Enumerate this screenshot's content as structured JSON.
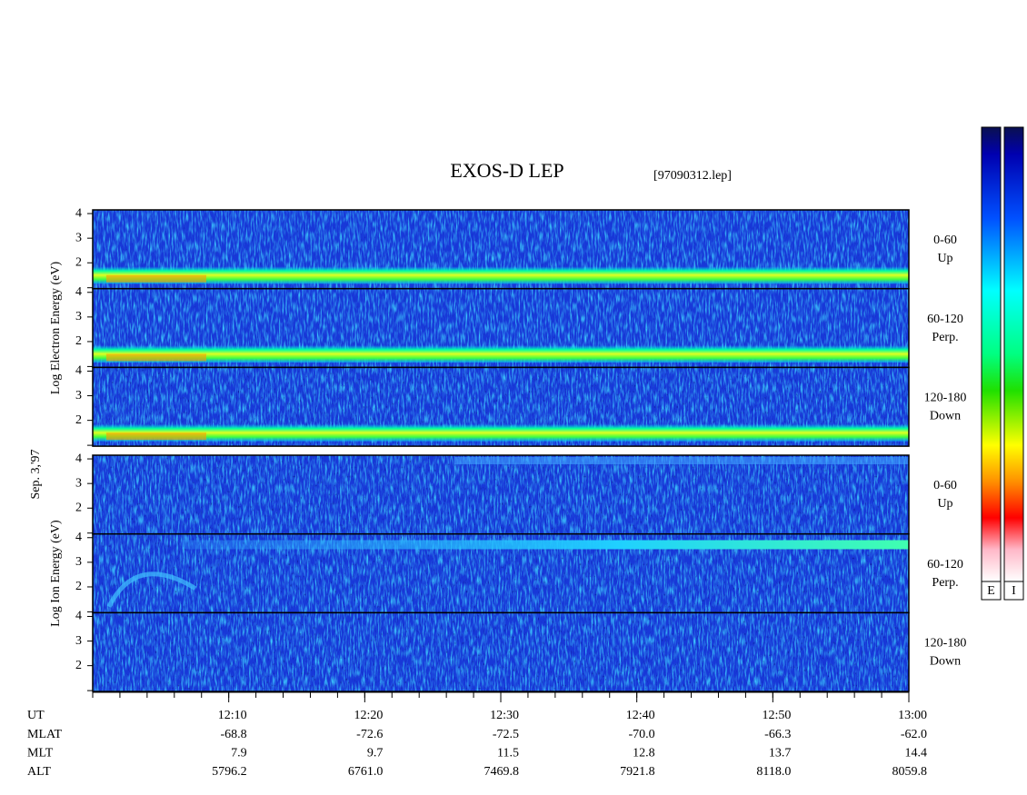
{
  "chart_data": {
    "type": "spectrogram",
    "title": "EXOS-D LEP",
    "subtitle": "[97090312.lep]",
    "date_label": "Sep. 3,'97",
    "ylim": [
      0.95,
      4.15
    ],
    "yticks": [
      2,
      3,
      4
    ],
    "groups": [
      {
        "ylabel": "Log Electron Energy (eV)",
        "colorbar_label": "E",
        "panels": [
          {
            "label": [
              "0-60",
              "Up"
            ]
          },
          {
            "label": [
              "60-120",
              "Perp."
            ]
          },
          {
            "label": [
              "120-180",
              "Down"
            ]
          }
        ]
      },
      {
        "ylabel": "Log Ion Energy (eV)",
        "colorbar_label": "I",
        "panels": [
          {
            "label": [
              "0-60",
              "Up"
            ]
          },
          {
            "label": [
              "60-120",
              "Perp."
            ]
          },
          {
            "label": [
              "120-180",
              "Down"
            ]
          }
        ]
      }
    ],
    "xlim": [
      0,
      60
    ],
    "xticks": [
      {
        "value": 10,
        "label": "12:10"
      },
      {
        "value": 20,
        "label": "12:20"
      },
      {
        "value": 30,
        "label": "12:30"
      },
      {
        "value": 40,
        "label": "12:40"
      },
      {
        "value": 50,
        "label": "12:50"
      },
      {
        "value": 60,
        "label": "13:00"
      }
    ],
    "xtick_title": "UT",
    "ephemeris": [
      {
        "name": "MLAT",
        "values": [
          "-68.8",
          "-72.6",
          "-72.5",
          "-70.0",
          "-66.3",
          "-62.0"
        ]
      },
      {
        "name": "MLT",
        "values": [
          "7.9",
          "9.7",
          "11.5",
          "12.8",
          "13.7",
          "14.4"
        ]
      },
      {
        "name": "ALT",
        "values": [
          "5796.2",
          "6761.0",
          "7469.8",
          "7921.8",
          "8118.0",
          "8059.8"
        ]
      }
    ]
  }
}
